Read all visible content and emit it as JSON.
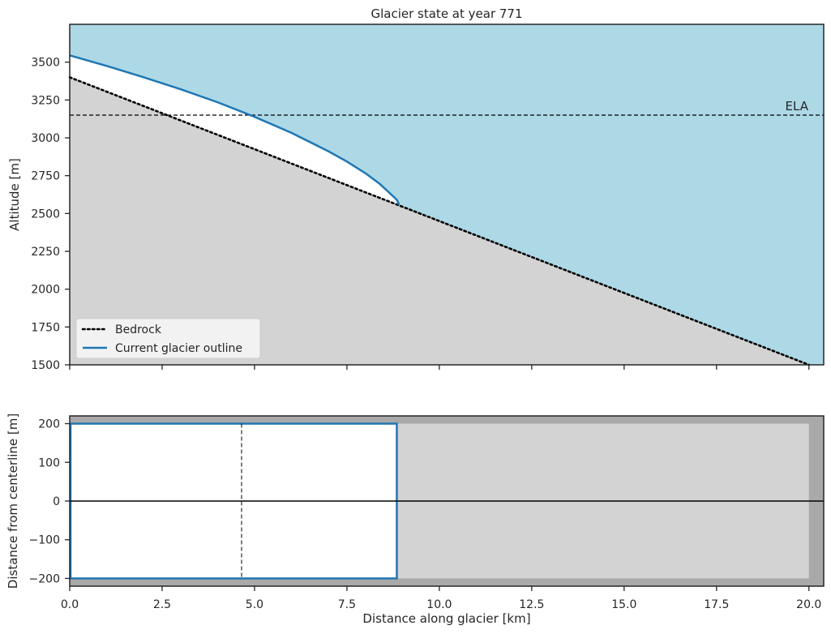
{
  "chart_data": [
    {
      "type": "area",
      "panel": "profile",
      "title": "Glacier state at year 771",
      "xlabel": "",
      "ylabel": "Altitude [m]",
      "xlim": [
        0,
        20.4
      ],
      "ylim": [
        1500,
        3750
      ],
      "xticks": [
        0,
        2.5,
        5,
        7.5,
        10,
        12.5,
        15,
        17.5,
        20
      ],
      "yticks": [
        1500,
        1750,
        2000,
        2250,
        2500,
        2750,
        3000,
        3250,
        3500
      ],
      "ytick_labels": [
        "1500",
        "1750",
        "2000",
        "2250",
        "2500",
        "2750",
        "3000",
        "3250",
        "3500"
      ],
      "ela": {
        "label": "ELA",
        "value": 3150
      },
      "series": [
        {
          "name": "Bedrock",
          "style": "dotted",
          "color": "#000000",
          "x": [
            0,
            20
          ],
          "y": [
            3400,
            1500
          ]
        },
        {
          "name": "Current glacier outline",
          "style": "solid",
          "color": "#1f77b4",
          "x": [
            0,
            1,
            2,
            3,
            4,
            5,
            6,
            7,
            7.5,
            8,
            8.4,
            8.7,
            8.85,
            8.9,
            8.9
          ],
          "y": [
            3545,
            3475,
            3400,
            3321,
            3235,
            3139,
            3033,
            2911,
            2843,
            2766,
            2693,
            2625,
            2590,
            2565,
            2555
          ]
        }
      ],
      "legend": {
        "placement": "lower-left",
        "entries": [
          "Bedrock",
          "Current glacier outline"
        ]
      },
      "colors": {
        "sky": "#add8e6",
        "bedrock_fill": "#d3d3d3",
        "ice": "#ffffff"
      }
    },
    {
      "type": "area",
      "panel": "map",
      "xlabel": "Distance along glacier [km]",
      "ylabel": "Distance from centerline [m]",
      "xlim": [
        0,
        20.4
      ],
      "ylim": [
        -220,
        220
      ],
      "xticks": [
        0,
        2.5,
        5,
        7.5,
        10,
        12.5,
        15,
        17.5,
        20
      ],
      "xtick_labels": [
        "0.0",
        "2.5",
        "5.0",
        "7.5",
        "10.0",
        "12.5",
        "15.0",
        "17.5",
        "20.0"
      ],
      "yticks": [
        -200,
        -100,
        0,
        100,
        200
      ],
      "ytick_labels": [
        "−200",
        "−100",
        "0",
        "100",
        "200"
      ],
      "valley": {
        "x": [
          0,
          20
        ],
        "y": [
          -200,
          200
        ]
      },
      "glacier": {
        "x": [
          0,
          8.85
        ],
        "y": [
          -200,
          200
        ]
      },
      "ela_position_km": 4.65,
      "colors": {
        "background": "#a9a9a9",
        "valley": "#d3d3d3",
        "glacier": "#ffffff",
        "outline": "#1f77b4"
      }
    }
  ]
}
